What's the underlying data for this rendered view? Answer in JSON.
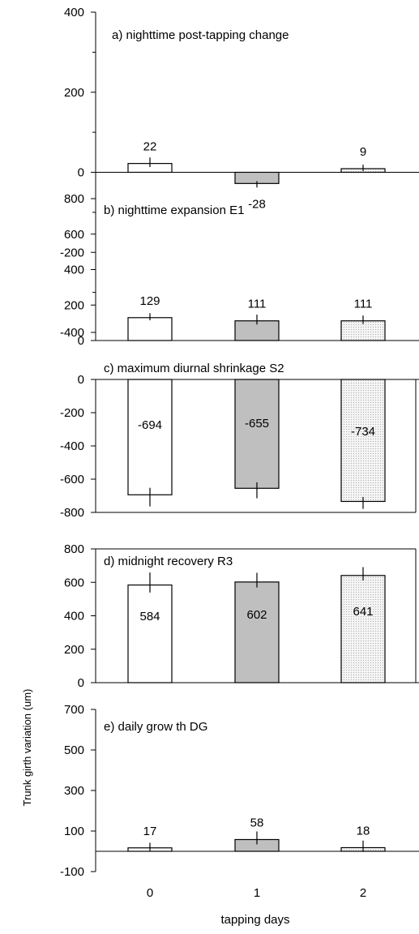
{
  "chart_data": [
    {
      "type": "bar",
      "title": "a)  nighttime post-tapping change",
      "categories": [
        "0",
        "1",
        "2"
      ],
      "values": [
        22,
        -28,
        9
      ],
      "value_labels": [
        "22",
        "-28",
        "9"
      ],
      "error": [
        15,
        10,
        10
      ],
      "yticks": [
        "400",
        "200",
        "0",
        "-200",
        "-400"
      ],
      "ytick_values": [
        400,
        200,
        0,
        -200,
        -400
      ],
      "ylim": [
        -400,
        400
      ],
      "fills": [
        "white",
        "#bfbfbf",
        "dots"
      ]
    },
    {
      "type": "bar",
      "title": "b) nighttime expansion E1",
      "categories": [
        "0",
        "1",
        "2"
      ],
      "values": [
        129,
        111,
        111
      ],
      "value_labels": [
        "129",
        "111",
        "111"
      ],
      "error": [
        25,
        35,
        30
      ],
      "yticks": [
        "800",
        "600",
        "400",
        "200",
        "0"
      ],
      "ytick_values": [
        800,
        600,
        400,
        200,
        0
      ],
      "ylim": [
        0,
        800
      ],
      "fills": [
        "white",
        "#bfbfbf",
        "dots"
      ]
    },
    {
      "type": "bar",
      "title": "c) maximum diurnal shrinkage S2",
      "categories": [
        "0",
        "1",
        "2"
      ],
      "values": [
        -694,
        -655,
        -734
      ],
      "value_labels": [
        "-694",
        "-655",
        "-734"
      ],
      "error": [
        70,
        60,
        45
      ],
      "yticks": [
        "0",
        "-200",
        "-400",
        "-600",
        "-800"
      ],
      "ytick_values": [
        0,
        -200,
        -400,
        -600,
        -800
      ],
      "ylim": [
        -800,
        0
      ],
      "fills": [
        "white",
        "#bfbfbf",
        "dots"
      ]
    },
    {
      "type": "bar",
      "title": "d) midnight recovery R3",
      "categories": [
        "0",
        "1",
        "2"
      ],
      "values": [
        584,
        602,
        641
      ],
      "value_labels": [
        "584",
        "602",
        "641"
      ],
      "error": [
        75,
        55,
        50
      ],
      "yticks": [
        "800",
        "600",
        "400",
        "200",
        "0"
      ],
      "ytick_values": [
        800,
        600,
        400,
        200,
        0
      ],
      "ylim": [
        0,
        800
      ],
      "fills": [
        "white",
        "#bfbfbf",
        "dots"
      ]
    },
    {
      "type": "bar",
      "title": "e) daily grow th DG",
      "categories": [
        "0",
        "1",
        "2"
      ],
      "values": [
        17,
        58,
        18
      ],
      "value_labels": [
        "17",
        "58",
        "18"
      ],
      "error": [
        25,
        40,
        35
      ],
      "yticks": [
        "700",
        "500",
        "300",
        "100",
        "-100"
      ],
      "ytick_values": [
        700,
        500,
        300,
        100,
        -100
      ],
      "ylim": [
        -100,
        700
      ],
      "fills": [
        "white",
        "#bfbfbf",
        "dots"
      ]
    }
  ],
  "axes": {
    "xticks": [
      "0",
      "1",
      "2"
    ],
    "xlabel": "tapping days",
    "ylabel": "Trunk girth variation (um)"
  }
}
